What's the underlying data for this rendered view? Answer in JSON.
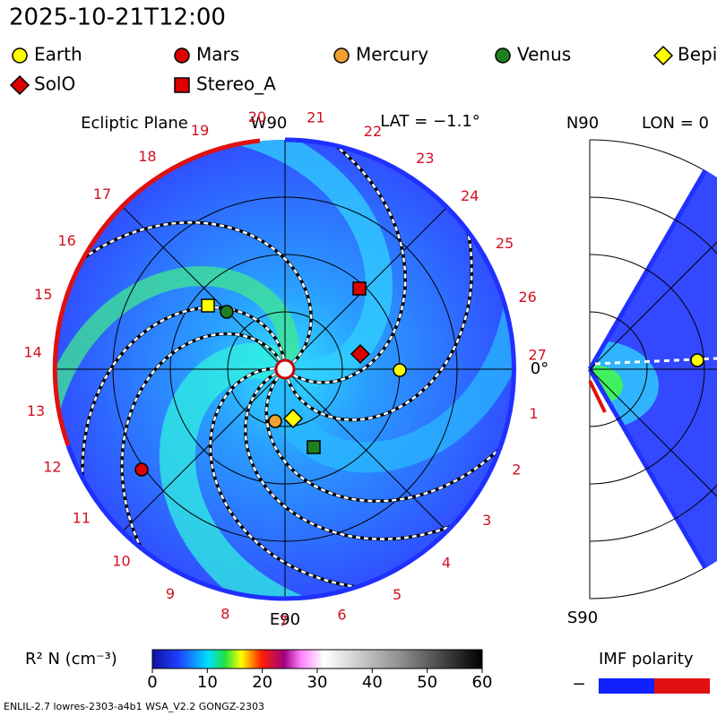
{
  "header": {
    "timestamp": "2025-10-21T12:00"
  },
  "legend": [
    {
      "label": "Earth",
      "color": "#ffff00",
      "shape": "circle"
    },
    {
      "label": "Mars",
      "color": "#dd0000",
      "shape": "circle"
    },
    {
      "label": "Mercury",
      "color": "#f0a030",
      "shape": "circle"
    },
    {
      "label": "Venus",
      "color": "#208020",
      "shape": "circle"
    },
    {
      "label": "BepiColombo",
      "color": "#ffff00",
      "shape": "diamond"
    },
    {
      "label": "SolO",
      "color": "#dd0000",
      "shape": "diamond"
    },
    {
      "label": "Stereo_A",
      "color": "#dd0000",
      "shape": "square"
    }
  ],
  "ecliptic_panel": {
    "title": "Ecliptic Plane",
    "top_label": "W90",
    "bottom_label": "E90",
    "right_label": "0°",
    "latitude": "LAT = −1.1°",
    "sector_labels": [
      1,
      2,
      3,
      4,
      5,
      6,
      7,
      8,
      9,
      10,
      11,
      12,
      13,
      14,
      15,
      16,
      17,
      18,
      19,
      20,
      21,
      22,
      23,
      24,
      25,
      26,
      27
    ]
  },
  "meridional_panel": {
    "top_label": "N90",
    "bottom_label": "S90",
    "longitude": "LON = 0"
  },
  "colorbar": {
    "label": "R² N (cm⁻³)",
    "lim": [
      0,
      60
    ],
    "ticks": [
      0,
      10,
      20,
      30,
      40,
      50,
      60
    ]
  },
  "imf_polarity": {
    "label": "IMF polarity",
    "negative": "−"
  },
  "footer": "ENLIL-2.7 lowres-2303-a4b1 WSA_V2.2 GONGZ-2303"
}
